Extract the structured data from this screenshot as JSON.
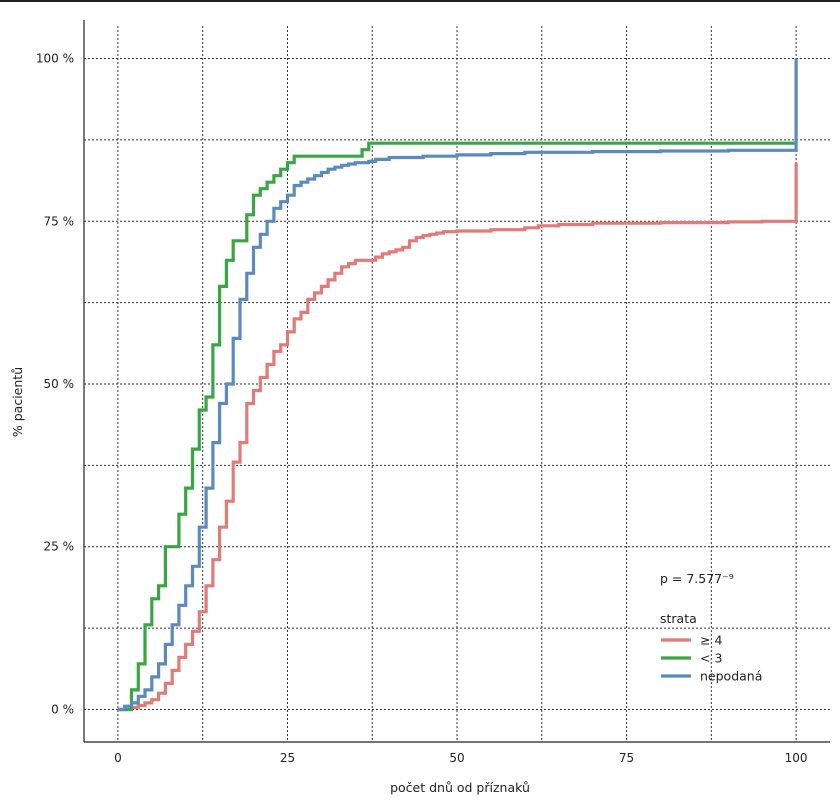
{
  "chart_data": {
    "type": "line",
    "step": true,
    "title": "",
    "xlabel": "počet dnů od příznaků",
    "ylabel": "% pacientů",
    "xlim": [
      -5,
      105
    ],
    "ylim": [
      -5,
      105
    ],
    "x_ticks": [
      0,
      25,
      50,
      75,
      100
    ],
    "x_tick_labels": [
      "0",
      "25",
      "50",
      "75",
      "100"
    ],
    "y_ticks": [
      0,
      25,
      50,
      75,
      100
    ],
    "y_tick_labels": [
      "0 %",
      "25 %",
      "50 %",
      "75 %",
      "100 %"
    ],
    "grid": true,
    "pvalue_text": "p = 7.577⁻⁹",
    "legend_title": "strata",
    "legend_position": "bottom-right",
    "series": [
      {
        "name": "≥ 4",
        "color": "#e07b77",
        "x": [
          0,
          2,
          3,
          4,
          5,
          6,
          7,
          8,
          9,
          10,
          11,
          12,
          13,
          14,
          15,
          16,
          17,
          18,
          19,
          20,
          21,
          22,
          23,
          24,
          25,
          26,
          27,
          28,
          29,
          30,
          31,
          32,
          33,
          34,
          35,
          37,
          38,
          39,
          40,
          41,
          42,
          43,
          44,
          45,
          46,
          47,
          48,
          50,
          55,
          60,
          62,
          65,
          70,
          80,
          90,
          95,
          100,
          100
        ],
        "y": [
          0,
          0.3,
          0.6,
          1,
          1.5,
          2.5,
          4,
          6,
          8,
          10,
          12,
          15,
          19,
          23,
          28,
          32,
          38,
          41,
          47,
          49,
          51,
          53,
          55,
          56,
          58,
          60,
          61,
          63,
          64,
          65,
          66,
          67,
          68,
          68.5,
          69,
          69,
          69.5,
          70,
          70.3,
          70.6,
          71,
          72,
          72.5,
          72.8,
          73,
          73.2,
          73.4,
          73.5,
          73.7,
          74,
          74.3,
          74.5,
          74.7,
          74.8,
          74.9,
          75,
          75,
          84
        ]
      },
      {
        "name": "< 3",
        "color": "#3aa544",
        "x": [
          0,
          2,
          3,
          4,
          5,
          6,
          7,
          8,
          9,
          10,
          11,
          12,
          13,
          14,
          15,
          16,
          17,
          19,
          20,
          21,
          22,
          23,
          24,
          25,
          26,
          27,
          36,
          37,
          100
        ],
        "y": [
          0,
          3,
          7,
          13,
          17,
          19,
          25,
          25,
          30,
          34,
          40,
          46,
          48,
          56,
          65,
          69,
          72,
          76,
          79,
          80,
          81,
          82,
          83,
          84,
          85,
          85,
          86,
          87,
          87
        ]
      },
      {
        "name": "nepodaná",
        "color": "#5b8abf",
        "x": [
          0,
          1,
          2,
          3,
          4,
          5,
          6,
          7,
          8,
          9,
          10,
          11,
          12,
          13,
          14,
          15,
          16,
          17,
          18,
          19,
          20,
          21,
          22,
          23,
          24,
          25,
          26,
          27,
          28,
          29,
          30,
          31,
          32,
          33,
          34,
          35,
          36,
          37,
          38,
          40,
          45,
          50,
          55,
          60,
          70,
          80,
          90,
          100,
          100
        ],
        "y": [
          0,
          0.5,
          1,
          2,
          3,
          5,
          7,
          10,
          13,
          16,
          19,
          22,
          28,
          34,
          41,
          47,
          50,
          57,
          63,
          67,
          71,
          73,
          75,
          77,
          78,
          79,
          80.5,
          81,
          81.5,
          82,
          82.5,
          83,
          83.3,
          83.6,
          83.8,
          84,
          84,
          84.2,
          84.5,
          84.8,
          85,
          85.2,
          85.4,
          85.6,
          85.7,
          85.8,
          85.9,
          86,
          100
        ]
      }
    ]
  }
}
